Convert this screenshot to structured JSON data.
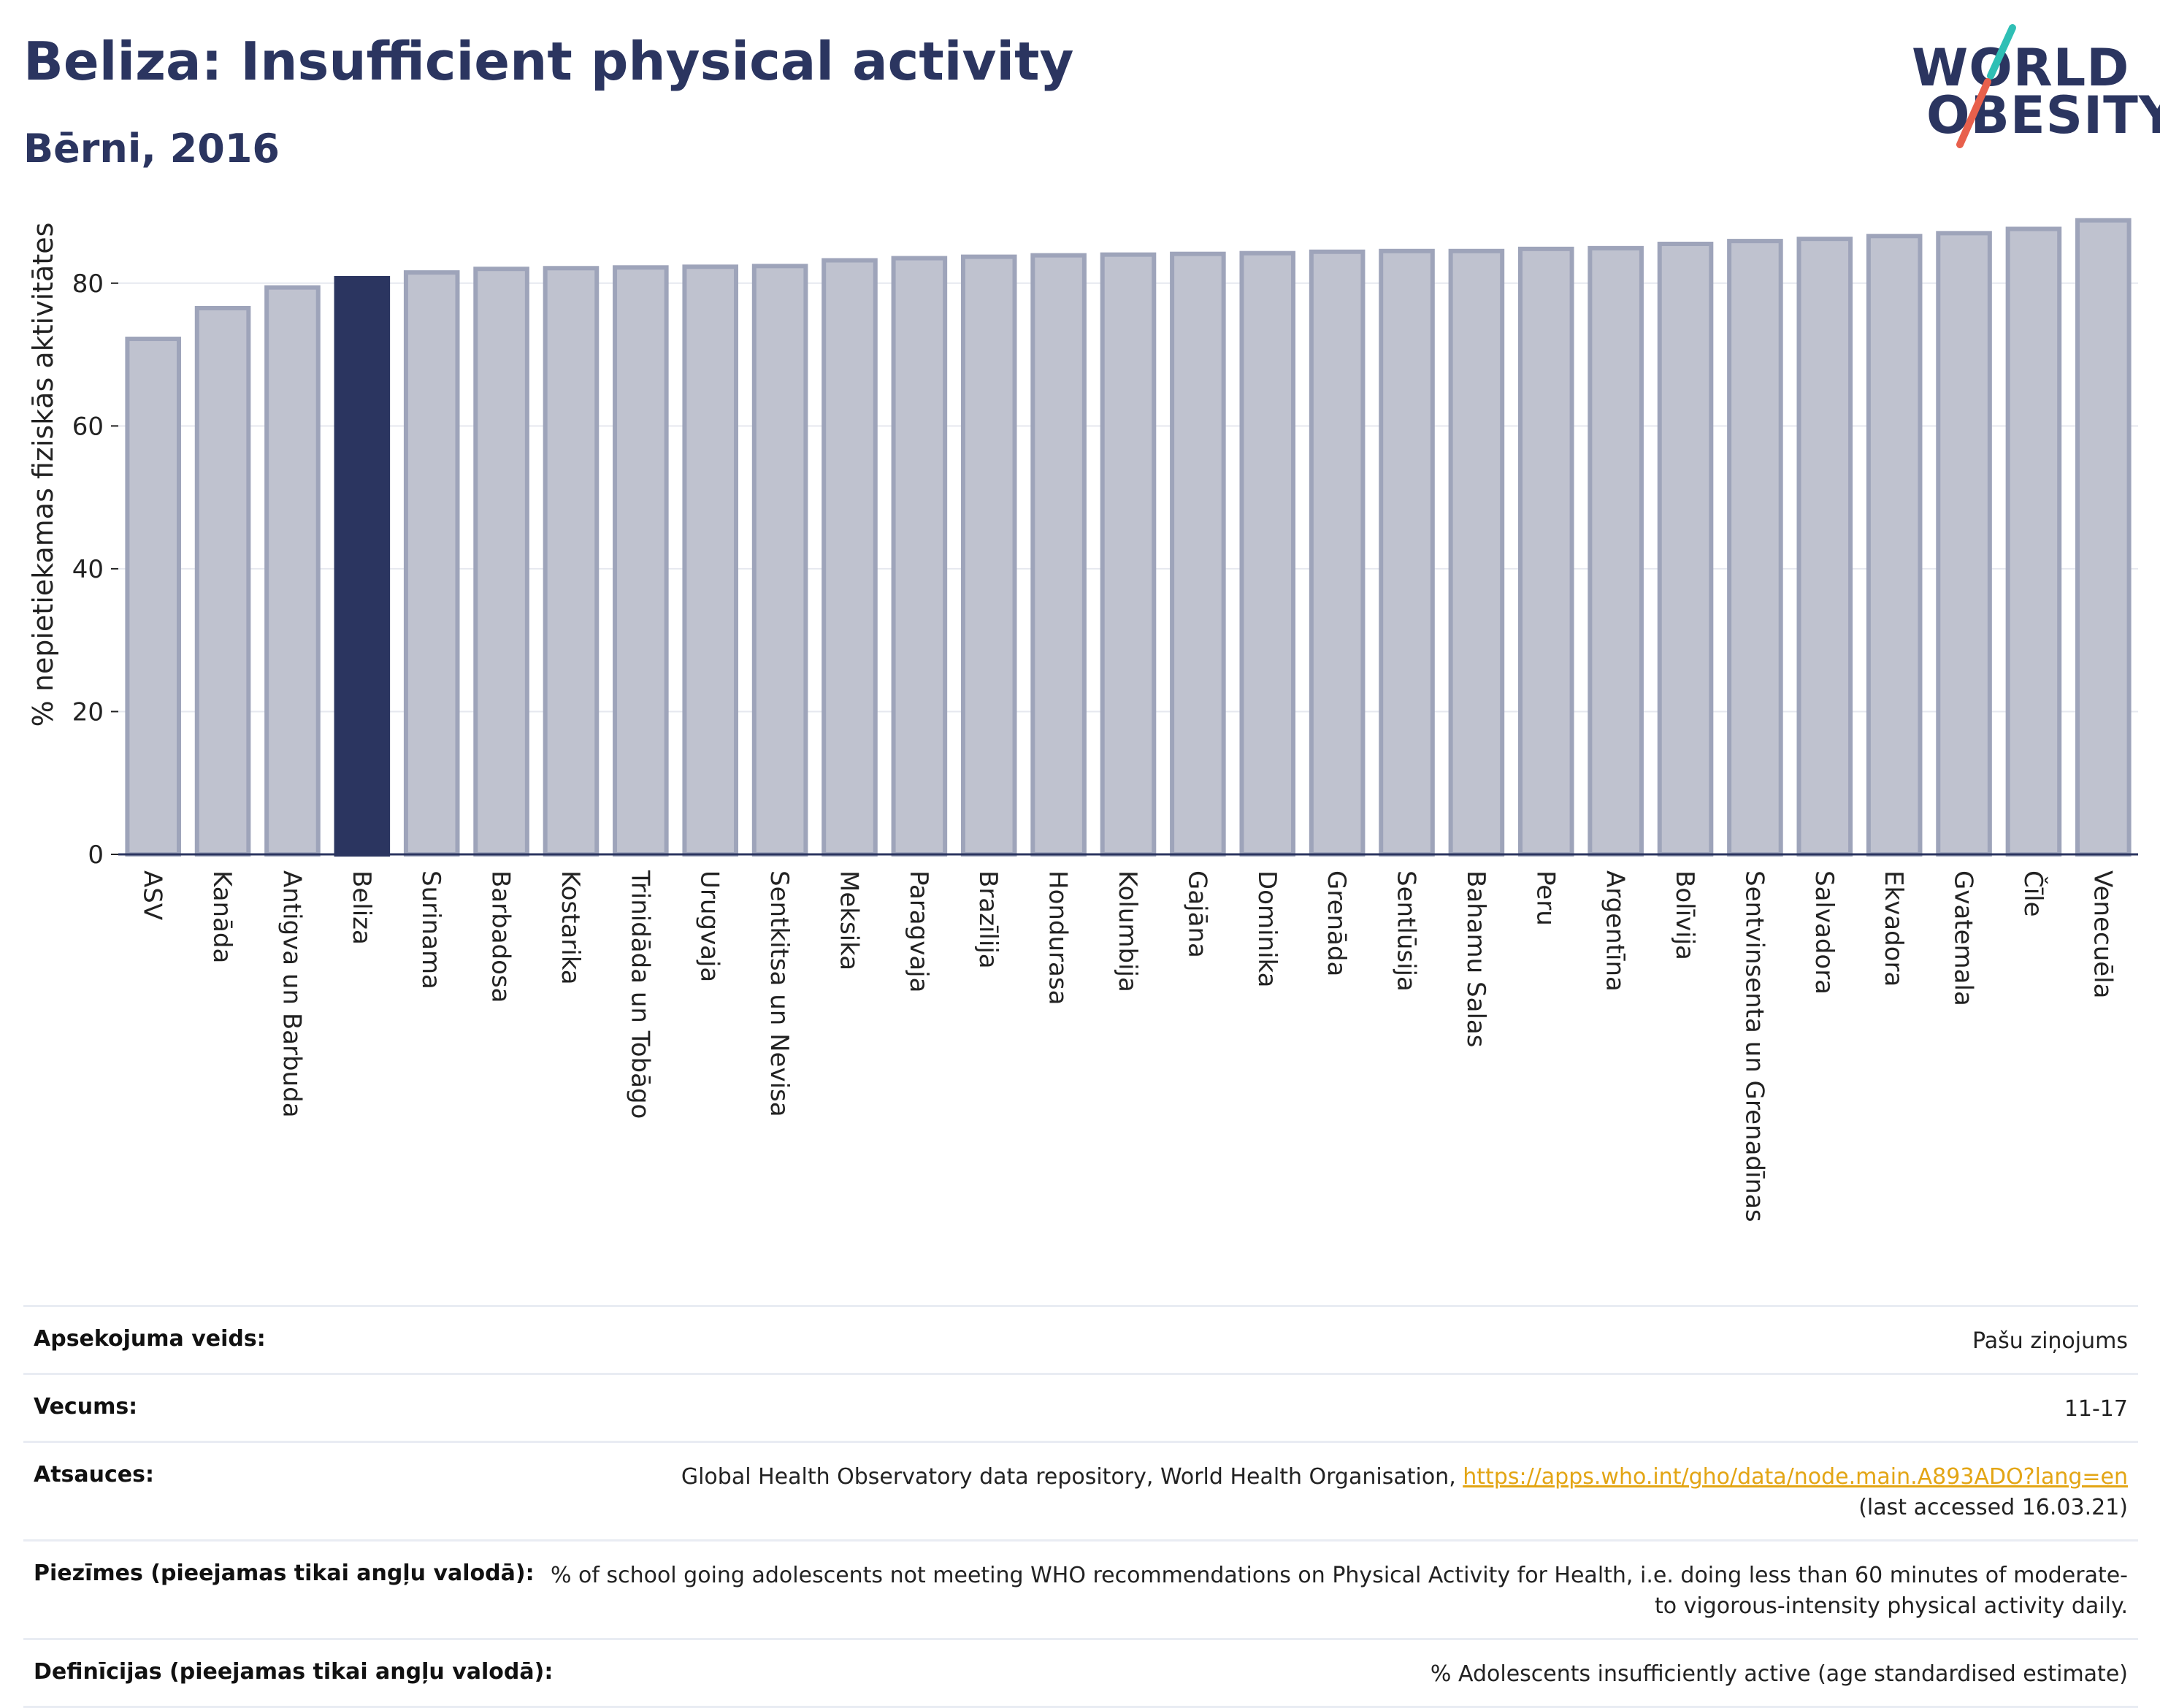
{
  "header": {
    "title": "Beliza: Insufficient physical activity",
    "subtitle": "Bērni, 2016"
  },
  "logo": {
    "line1": "WORLD",
    "line2": "OBESITY",
    "slash_colors": [
      "#2fbfb5",
      "#e8604c"
    ]
  },
  "chart_data": {
    "type": "bar",
    "title": "Beliza: Insufficient physical activity",
    "subtitle": "Bērni, 2016",
    "ylabel": "% nepietiekamas fiziskās aktivitātes",
    "xlabel": "",
    "ylim": [
      0,
      90
    ],
    "yticks": [
      0,
      20,
      40,
      60,
      80
    ],
    "grid": true,
    "legend": "none",
    "highlight": "Beliza",
    "colors": {
      "bar": "#bfc2cf",
      "bar_border": "#9ea4ba",
      "highlight": "#2b3560",
      "grid": "#e6e8ef",
      "axis": "#2b3560"
    },
    "categories": [
      "ASV",
      "Kanāda",
      "Antigva un Barbuda",
      "Beliza",
      "Surinama",
      "Barbadosa",
      "Kostarika",
      "Trinidāda un Tobāgo",
      "Urugvaja",
      "Sentkitsa un Nevisa",
      "Meksika",
      "Paragvaja",
      "Brazīlija",
      "Hondurasa",
      "Kolumbija",
      "Gajāna",
      "Dominika",
      "Grenāda",
      "Sentlūsija",
      "Bahamu Salas",
      "Peru",
      "Argentīna",
      "Bolīvija",
      "Sentvinsenta un Grenadīnas",
      "Salvadora",
      "Ekvadora",
      "Gvatemala",
      "Čīle",
      "Venecuēla"
    ],
    "values": [
      72.2,
      76.5,
      79.4,
      80.7,
      81.5,
      82.0,
      82.1,
      82.2,
      82.3,
      82.4,
      83.2,
      83.5,
      83.7,
      83.9,
      84.0,
      84.1,
      84.2,
      84.4,
      84.5,
      84.5,
      84.8,
      84.9,
      85.5,
      85.9,
      86.2,
      86.6,
      87.0,
      87.6,
      88.8
    ]
  },
  "meta": {
    "rows": [
      {
        "label": "Apsekojuma veids:",
        "value": "Pašu ziņojums"
      },
      {
        "label": "Vecums:",
        "value": "11-17"
      },
      {
        "label": "Atsauces:",
        "value": "Global Health Observatory data repository, World Health Organisation, ",
        "link": "https://apps.who.int/gho/data/node.main.A893ADO?lang=en",
        "after": "(last accessed 16.03.21)"
      },
      {
        "label": "Piezīmes (pieejamas tikai angļu valodā):",
        "value": "% of school going adolescents not meeting WHO recommendations on Physical Activity for Health, i.e. doing less than 60 minutes of moderate- to vigorous-intensity physical activity daily."
      },
      {
        "label": "Definīcijas (pieejamas tikai angļu valodā):",
        "value": "% Adolescents insufficiently active (age standardised estimate)"
      }
    ]
  }
}
